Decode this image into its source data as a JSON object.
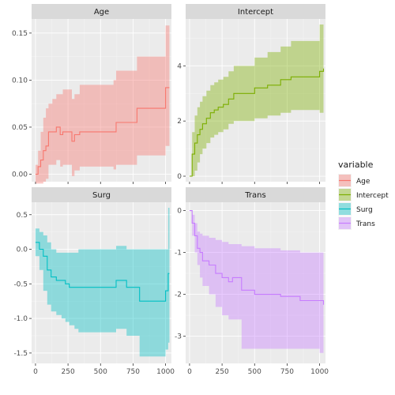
{
  "chart_data": {
    "type": "line",
    "layout": "facet_wrap 2x2, free y scales, step lines with confidence ribbons",
    "x_ticks": [
      0,
      250,
      500,
      750,
      1000
    ],
    "xlim": [
      -30,
      1045
    ],
    "legend": {
      "title": "variable",
      "placement": "right",
      "items": [
        {
          "label": "Age",
          "color": "#F8766D"
        },
        {
          "label": "Intercept",
          "color": "#7CAE00"
        },
        {
          "label": "Surg",
          "color": "#00BFC4"
        },
        {
          "label": "Trans",
          "color": "#C77CFF"
        }
      ]
    },
    "panels": [
      {
        "strip": "Age",
        "color": "#F8766D",
        "ylim": [
          -0.008,
          0.165
        ],
        "y_ticks": [
          0.0,
          0.05,
          0.1,
          0.15
        ],
        "y_tick_labels": [
          "0.00",
          "0.05",
          "0.10",
          "0.15"
        ],
        "minor_y": [
          0.025,
          0.075,
          0.125
        ],
        "x": [
          0,
          20,
          40,
          60,
          80,
          100,
          130,
          160,
          190,
          210,
          280,
          300,
          340,
          600,
          620,
          640,
          780,
          1000,
          1030
        ],
        "y": [
          0.0,
          0.008,
          0.015,
          0.025,
          0.03,
          0.045,
          0.045,
          0.05,
          0.042,
          0.045,
          0.035,
          0.042,
          0.045,
          0.045,
          0.055,
          0.055,
          0.07,
          0.092,
          0.092
        ],
        "lower": [
          -0.01,
          -0.01,
          -0.01,
          -0.008,
          -0.005,
          0.01,
          0.01,
          0.015,
          0.008,
          0.01,
          -0.002,
          0.004,
          0.008,
          0.005,
          0.01,
          0.01,
          0.02,
          0.03,
          0.03
        ],
        "upper": [
          0.01,
          0.025,
          0.045,
          0.06,
          0.07,
          0.075,
          0.08,
          0.085,
          0.085,
          0.09,
          0.08,
          0.085,
          0.095,
          0.1,
          0.11,
          0.11,
          0.125,
          0.158,
          0.158
        ]
      },
      {
        "strip": "Intercept",
        "color": "#7CAE00",
        "ylim": [
          -0.2,
          5.7
        ],
        "y_ticks": [
          0,
          2,
          4
        ],
        "y_tick_labels": [
          "0",
          "2",
          "4"
        ],
        "minor_y": [
          1,
          3,
          5
        ],
        "x": [
          0,
          20,
          40,
          60,
          80,
          100,
          130,
          160,
          190,
          220,
          260,
          300,
          340,
          500,
          600,
          700,
          780,
          1000,
          1030
        ],
        "y": [
          0.0,
          0.8,
          1.2,
          1.5,
          1.7,
          1.9,
          2.1,
          2.3,
          2.4,
          2.5,
          2.6,
          2.8,
          3.0,
          3.2,
          3.3,
          3.5,
          3.6,
          3.8,
          3.9
        ],
        "lower": [
          0.0,
          0.0,
          0.2,
          0.5,
          0.8,
          1.0,
          1.2,
          1.4,
          1.5,
          1.6,
          1.7,
          1.9,
          2.0,
          2.1,
          2.2,
          2.3,
          2.4,
          2.3,
          2.3
        ],
        "upper": [
          0.0,
          1.6,
          2.2,
          2.5,
          2.7,
          2.9,
          3.1,
          3.3,
          3.4,
          3.5,
          3.6,
          3.8,
          4.0,
          4.3,
          4.5,
          4.7,
          4.9,
          5.5,
          5.5
        ]
      },
      {
        "strip": "Surg",
        "color": "#00BFC4",
        "ylim": [
          -1.65,
          0.68
        ],
        "y_ticks": [
          -1.5,
          -1.0,
          -0.5,
          0.0,
          0.5
        ],
        "y_tick_labels": [
          "-1.5",
          "-1.0",
          "-0.5",
          "0.0",
          "0.5"
        ],
        "minor_y": [
          -1.25,
          -0.75,
          -0.25,
          0.25
        ],
        "x": [
          0,
          30,
          60,
          90,
          120,
          160,
          200,
          230,
          260,
          300,
          330,
          600,
          620,
          700,
          800,
          1000,
          1020,
          1030
        ],
        "y": [
          0.1,
          0.0,
          -0.1,
          -0.3,
          -0.4,
          -0.45,
          -0.45,
          -0.5,
          -0.55,
          -0.55,
          -0.55,
          -0.55,
          -0.45,
          -0.55,
          -0.75,
          -0.6,
          -0.35,
          -0.35
        ],
        "lower": [
          -0.1,
          -0.3,
          -0.6,
          -0.8,
          -0.9,
          -0.95,
          -1.0,
          -1.05,
          -1.1,
          -1.15,
          -1.2,
          -1.2,
          -1.15,
          -1.25,
          -1.55,
          -1.45,
          -1.35,
          -1.35
        ],
        "upper": [
          0.3,
          0.25,
          0.2,
          0.1,
          0.0,
          -0.05,
          -0.05,
          -0.05,
          -0.05,
          -0.05,
          0.0,
          0.0,
          0.05,
          0.0,
          0.0,
          0.0,
          0.6,
          0.6
        ]
      },
      {
        "strip": "Trans",
        "color": "#C77CFF",
        "ylim": [
          -3.65,
          0.2
        ],
        "y_ticks": [
          -3,
          -2,
          -1,
          0
        ],
        "y_tick_labels": [
          "-3",
          "-2",
          "-1",
          "0"
        ],
        "minor_y": [
          -2.5,
          -1.5,
          -0.5
        ],
        "x": [
          0,
          20,
          40,
          60,
          80,
          100,
          150,
          200,
          250,
          300,
          330,
          400,
          500,
          700,
          850,
          1000,
          1030
        ],
        "y": [
          0.0,
          -0.3,
          -0.6,
          -0.9,
          -1.0,
          -1.2,
          -1.3,
          -1.5,
          -1.6,
          -1.7,
          -1.6,
          -1.9,
          -2.0,
          -2.05,
          -2.15,
          -2.15,
          -2.25
        ],
        "lower": [
          0.0,
          -0.6,
          -1.0,
          -1.3,
          -1.6,
          -1.8,
          -2.0,
          -2.3,
          -2.5,
          -2.6,
          -2.6,
          -3.3,
          -3.3,
          -3.3,
          -3.3,
          -3.4,
          -3.55
        ],
        "upper": [
          0.0,
          -0.1,
          -0.3,
          -0.5,
          -0.55,
          -0.6,
          -0.65,
          -0.7,
          -0.75,
          -0.8,
          -0.8,
          -0.85,
          -0.9,
          -0.95,
          -1.0,
          -1.0,
          -1.0
        ]
      }
    ]
  }
}
